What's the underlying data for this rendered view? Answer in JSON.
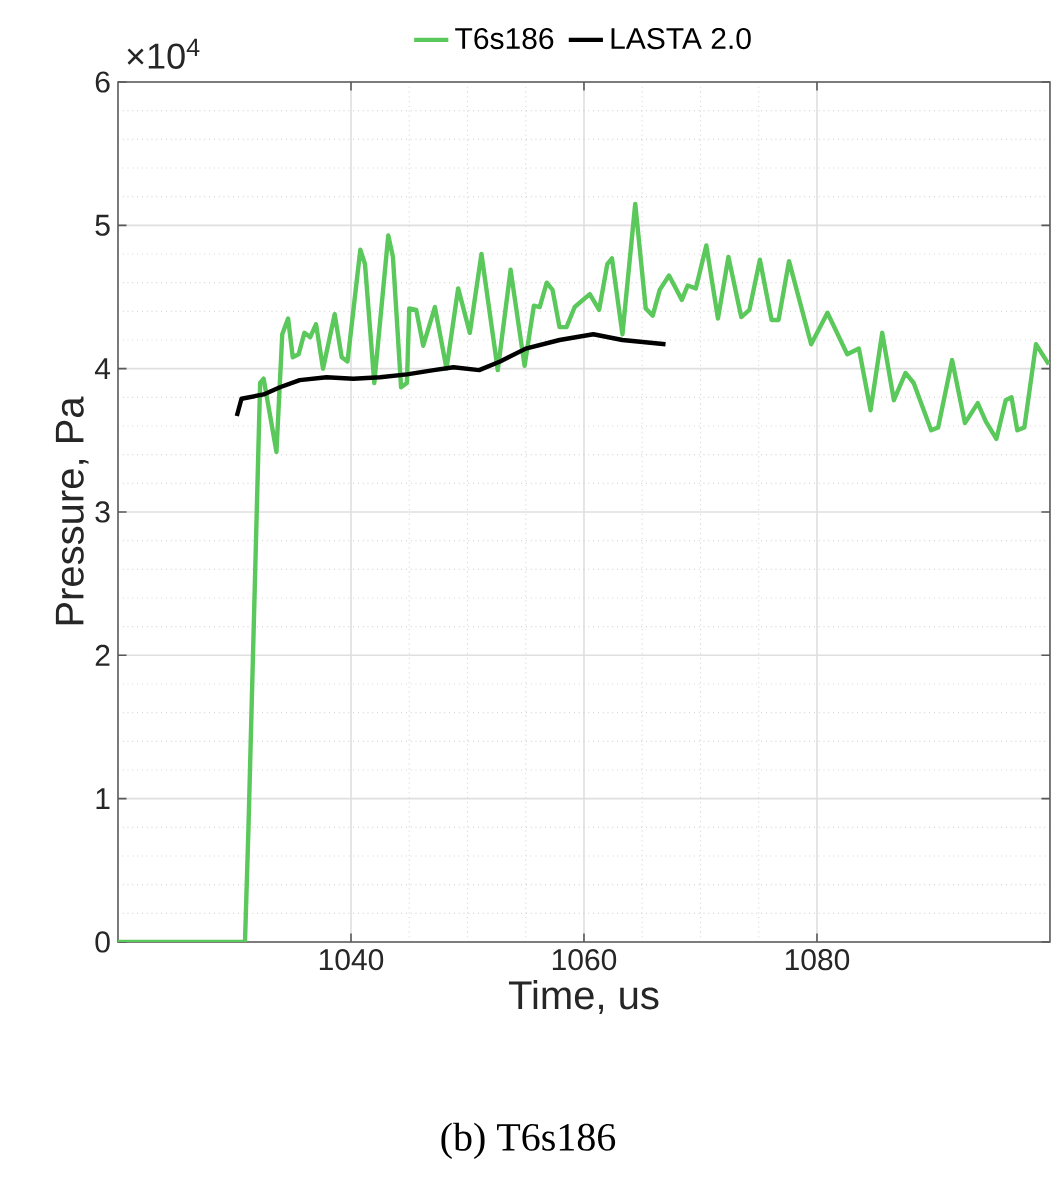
{
  "chart_data": {
    "type": "line",
    "xlabel": "Time, us",
    "ylabel": "Pressure, Pa",
    "annotations": [
      "(b) T6s186",
      "×10$^{4}$"
    ],
    "xlim": [
      1020,
      1100
    ],
    "ylim": [
      0,
      6
    ],
    "xticks": [
      1040,
      1060,
      1080
    ],
    "yticks": [
      0,
      1,
      2,
      3,
      4,
      5,
      6
    ],
    "grid": true,
    "legend": "top",
    "line_style": "solid",
    "marker": "none",
    "series": [
      {
        "name": "T6s186",
        "color": "#5ac85a",
        "x": [
          1020,
          1030.9,
          1031.2,
          1032.2,
          1032.5,
          1033.6,
          1034.1,
          1034.6,
          1035.0,
          1035.5,
          1036.0,
          1036.5,
          1037.0,
          1037.6,
          1038.6,
          1039.2,
          1039.7,
          1040.8,
          1041.2,
          1042.0,
          1043.2,
          1043.6,
          1044.3,
          1044.8,
          1045.0,
          1045.6,
          1046.2,
          1047.2,
          1048.2,
          1049.2,
          1050.2,
          1051.2,
          1052.6,
          1053.7,
          1054.9,
          1055.7,
          1056.2,
          1056.8,
          1057.3,
          1057.9,
          1058.5,
          1059.2,
          1060.5,
          1061.3,
          1062.0,
          1062.4,
          1063.3,
          1064.4,
          1065.3,
          1065.9,
          1066.5,
          1067.3,
          1068.4,
          1068.9,
          1069.6,
          1070.5,
          1071.5,
          1072.4,
          1073.5,
          1074.2,
          1075.1,
          1076.1,
          1076.7,
          1077.6,
          1079.5,
          1080.9,
          1082.6,
          1083.6,
          1084.6,
          1085.6,
          1086.6,
          1087.6,
          1088.3,
          1089.8,
          1090.4,
          1091.6,
          1092.7,
          1093.8,
          1094.5,
          1095.4,
          1096.2,
          1096.7,
          1097.2,
          1097.8,
          1098.8,
          1099.9
        ],
        "values": [
          0,
          0,
          0.8,
          3.9,
          3.93,
          3.42,
          4.24,
          4.35,
          4.08,
          4.1,
          4.25,
          4.22,
          4.31,
          4.0,
          4.38,
          4.08,
          4.05,
          4.83,
          4.73,
          3.9,
          4.93,
          4.78,
          3.87,
          3.9,
          4.42,
          4.41,
          4.16,
          4.43,
          4.0,
          4.56,
          4.25,
          4.8,
          3.99,
          4.69,
          4.02,
          4.44,
          4.43,
          4.6,
          4.55,
          4.29,
          4.29,
          4.43,
          4.52,
          4.41,
          4.73,
          4.77,
          4.24,
          5.15,
          4.42,
          4.37,
          4.55,
          4.65,
          4.48,
          4.58,
          4.56,
          4.86,
          4.35,
          4.78,
          4.36,
          4.41,
          4.76,
          4.34,
          4.34,
          4.75,
          4.17,
          4.39,
          4.1,
          4.14,
          3.71,
          4.25,
          3.78,
          3.97,
          3.9,
          3.57,
          3.59,
          4.06,
          3.62,
          3.76,
          3.63,
          3.51,
          3.78,
          3.8,
          3.57,
          3.59,
          4.17,
          4.03
        ]
      },
      {
        "name": "LASTA 2.0",
        "color": "#000000",
        "x": [
          1030.2,
          1030.6,
          1032.5,
          1033.9,
          1035.6,
          1037.9,
          1040.2,
          1042.5,
          1044.8,
          1047.1,
          1048.8,
          1051.0,
          1052.8,
          1055.0,
          1057.9,
          1060.8,
          1063.3,
          1067.0
        ],
        "values": [
          3.67,
          3.79,
          3.82,
          3.87,
          3.92,
          3.94,
          3.93,
          3.94,
          3.96,
          3.99,
          4.01,
          3.99,
          4.05,
          4.14,
          4.2,
          4.24,
          4.2,
          4.17
        ]
      }
    ]
  }
}
